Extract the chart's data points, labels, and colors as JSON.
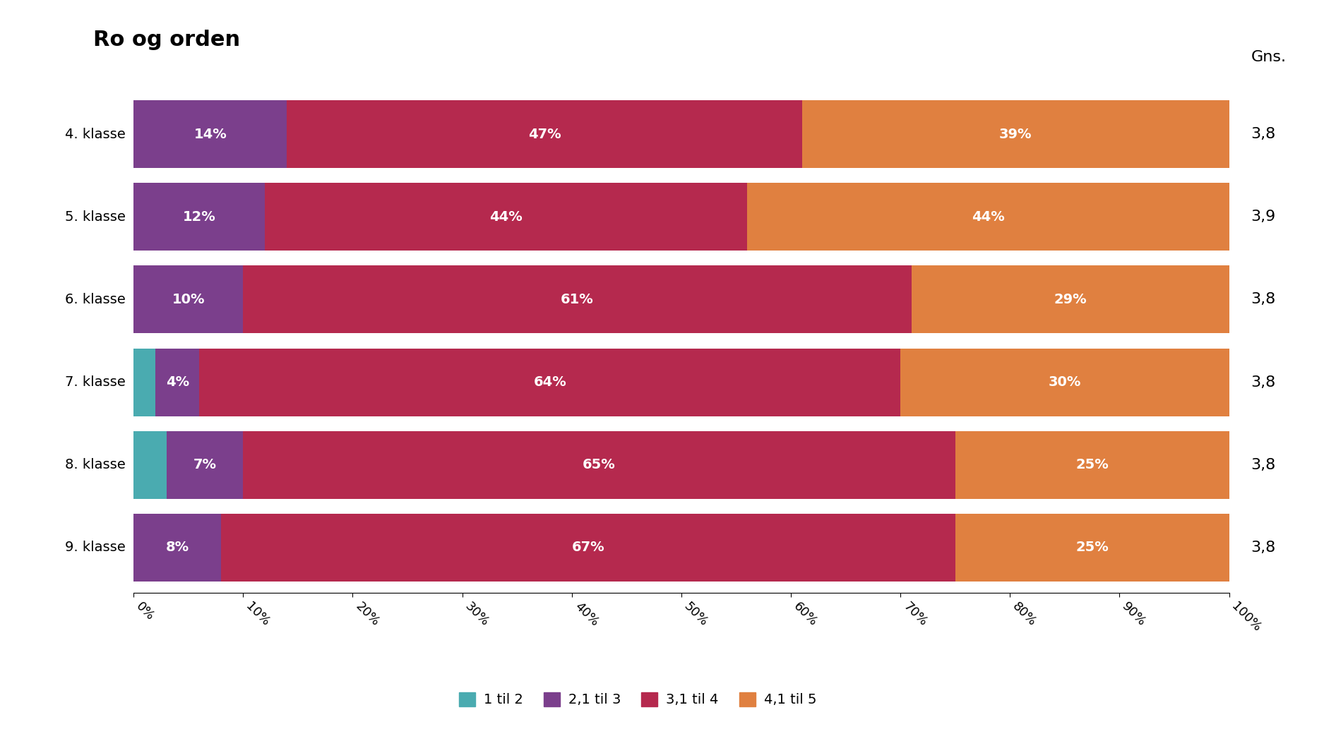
{
  "title": "Ro og orden",
  "categories": [
    "4. klasse",
    "5. klasse",
    "6. klasse",
    "7. klasse",
    "8. klasse",
    "9. klasse"
  ],
  "segments": {
    "1 til 2": [
      0,
      0,
      0,
      2,
      3,
      0
    ],
    "2,1 til 3": [
      14,
      12,
      10,
      4,
      7,
      8
    ],
    "3,1 til 4": [
      47,
      44,
      61,
      64,
      65,
      67
    ],
    "4,1 til 5": [
      39,
      44,
      29,
      30,
      25,
      25
    ]
  },
  "colors": {
    "1 til 2": "#4AABB0",
    "2,1 til 3": "#7B3F8C",
    "3,1 til 4": "#B5294E",
    "4,1 til 5": "#E08040"
  },
  "averages": [
    "3,8",
    "3,9",
    "3,8",
    "3,8",
    "3,8",
    "3,8"
  ],
  "xlabel_ticks": [
    0,
    10,
    20,
    30,
    40,
    50,
    60,
    70,
    80,
    90,
    100
  ],
  "background_color": "#FFFFFF",
  "title_fontsize": 22,
  "label_fontsize": 14,
  "tick_fontsize": 13,
  "legend_fontsize": 14,
  "avg_fontsize": 16,
  "bar_height": 0.82
}
